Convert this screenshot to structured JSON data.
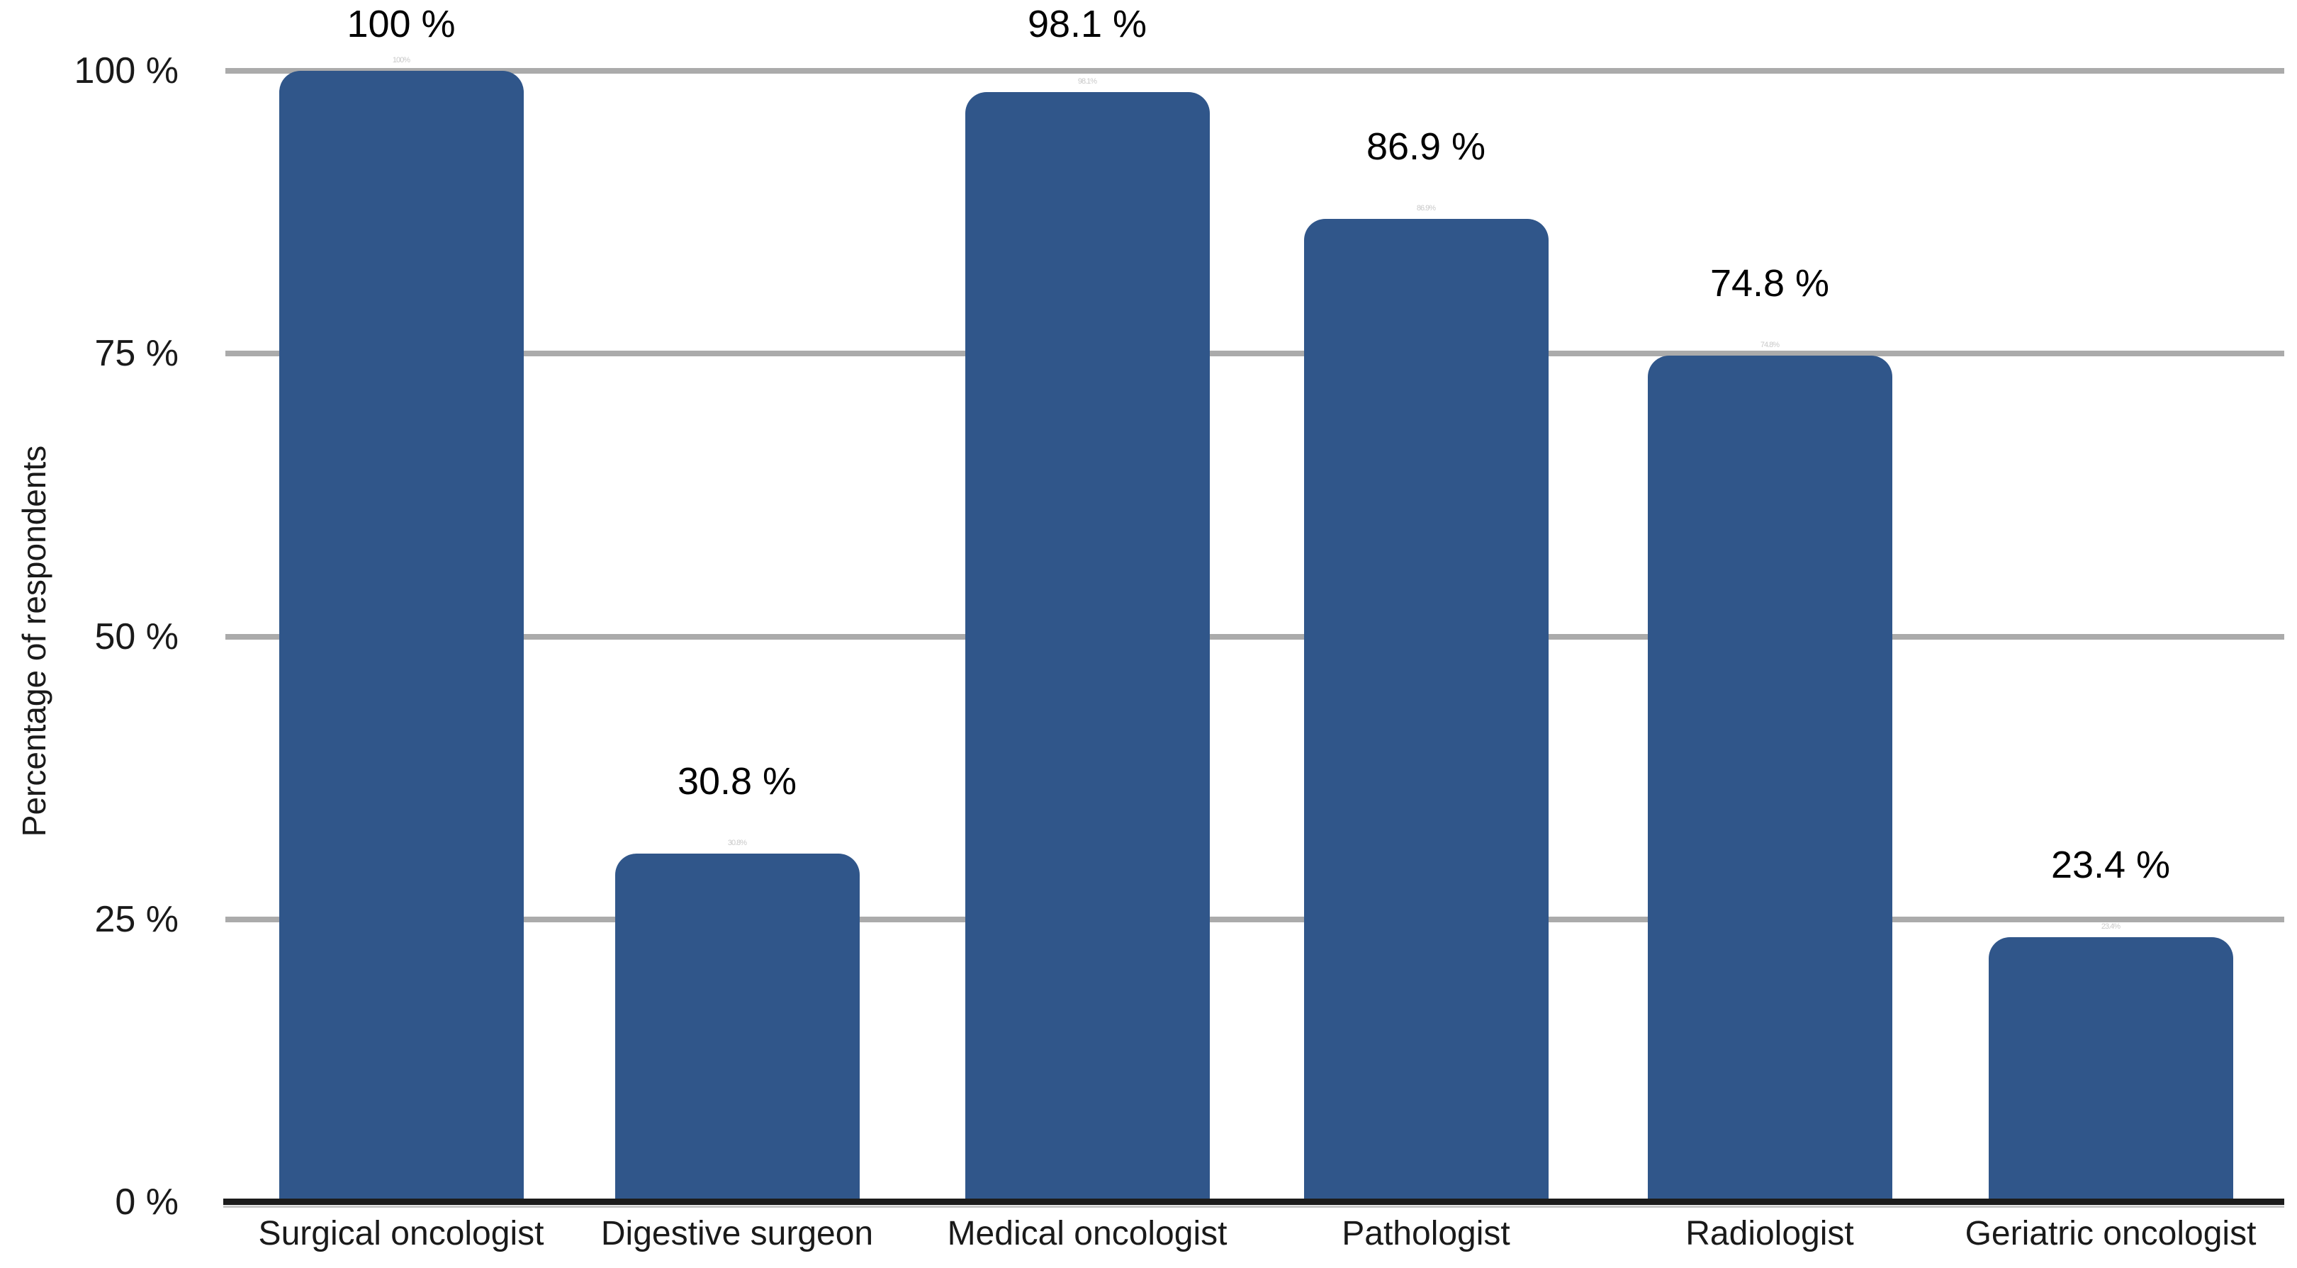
{
  "chart_data": {
    "type": "bar",
    "title": "",
    "xlabel": "",
    "ylabel": "Percentage of respondents",
    "categories": [
      "Surgical oncologist",
      "Digestive surgeon",
      "Medical oncologist",
      "Pathologist",
      "Radiologist",
      "Geriatric oncologist"
    ],
    "values": [
      100,
      30.8,
      98.1,
      86.9,
      74.8,
      23.4
    ],
    "value_labels": [
      "100 %",
      "30.8 %",
      "98.1 %",
      "86.9 %",
      "74.8 %",
      "23.4 %"
    ],
    "tiny_bar_top_marks": [
      "100%",
      "30.8%",
      "98.1%",
      "86.9%",
      "74.8%",
      "23.4%"
    ],
    "ylim": [
      0,
      100
    ],
    "yticks": [
      0,
      25,
      50,
      75,
      100
    ],
    "ytick_labels": [
      "0 %",
      "25 %",
      "50 %",
      "75 %",
      "100 %"
    ],
    "grid": true,
    "legend_position": "none",
    "colors": {
      "bar": "#30568a",
      "gridline": "#ababab",
      "axis_line": "#1c1c1c",
      "axis_line_shadow": "#c9c9c9",
      "text": "#1a1a1a",
      "value_label_text": "#000000",
      "tiny_mark_text": "#c9c9c9",
      "background": "#ffffff"
    }
  }
}
